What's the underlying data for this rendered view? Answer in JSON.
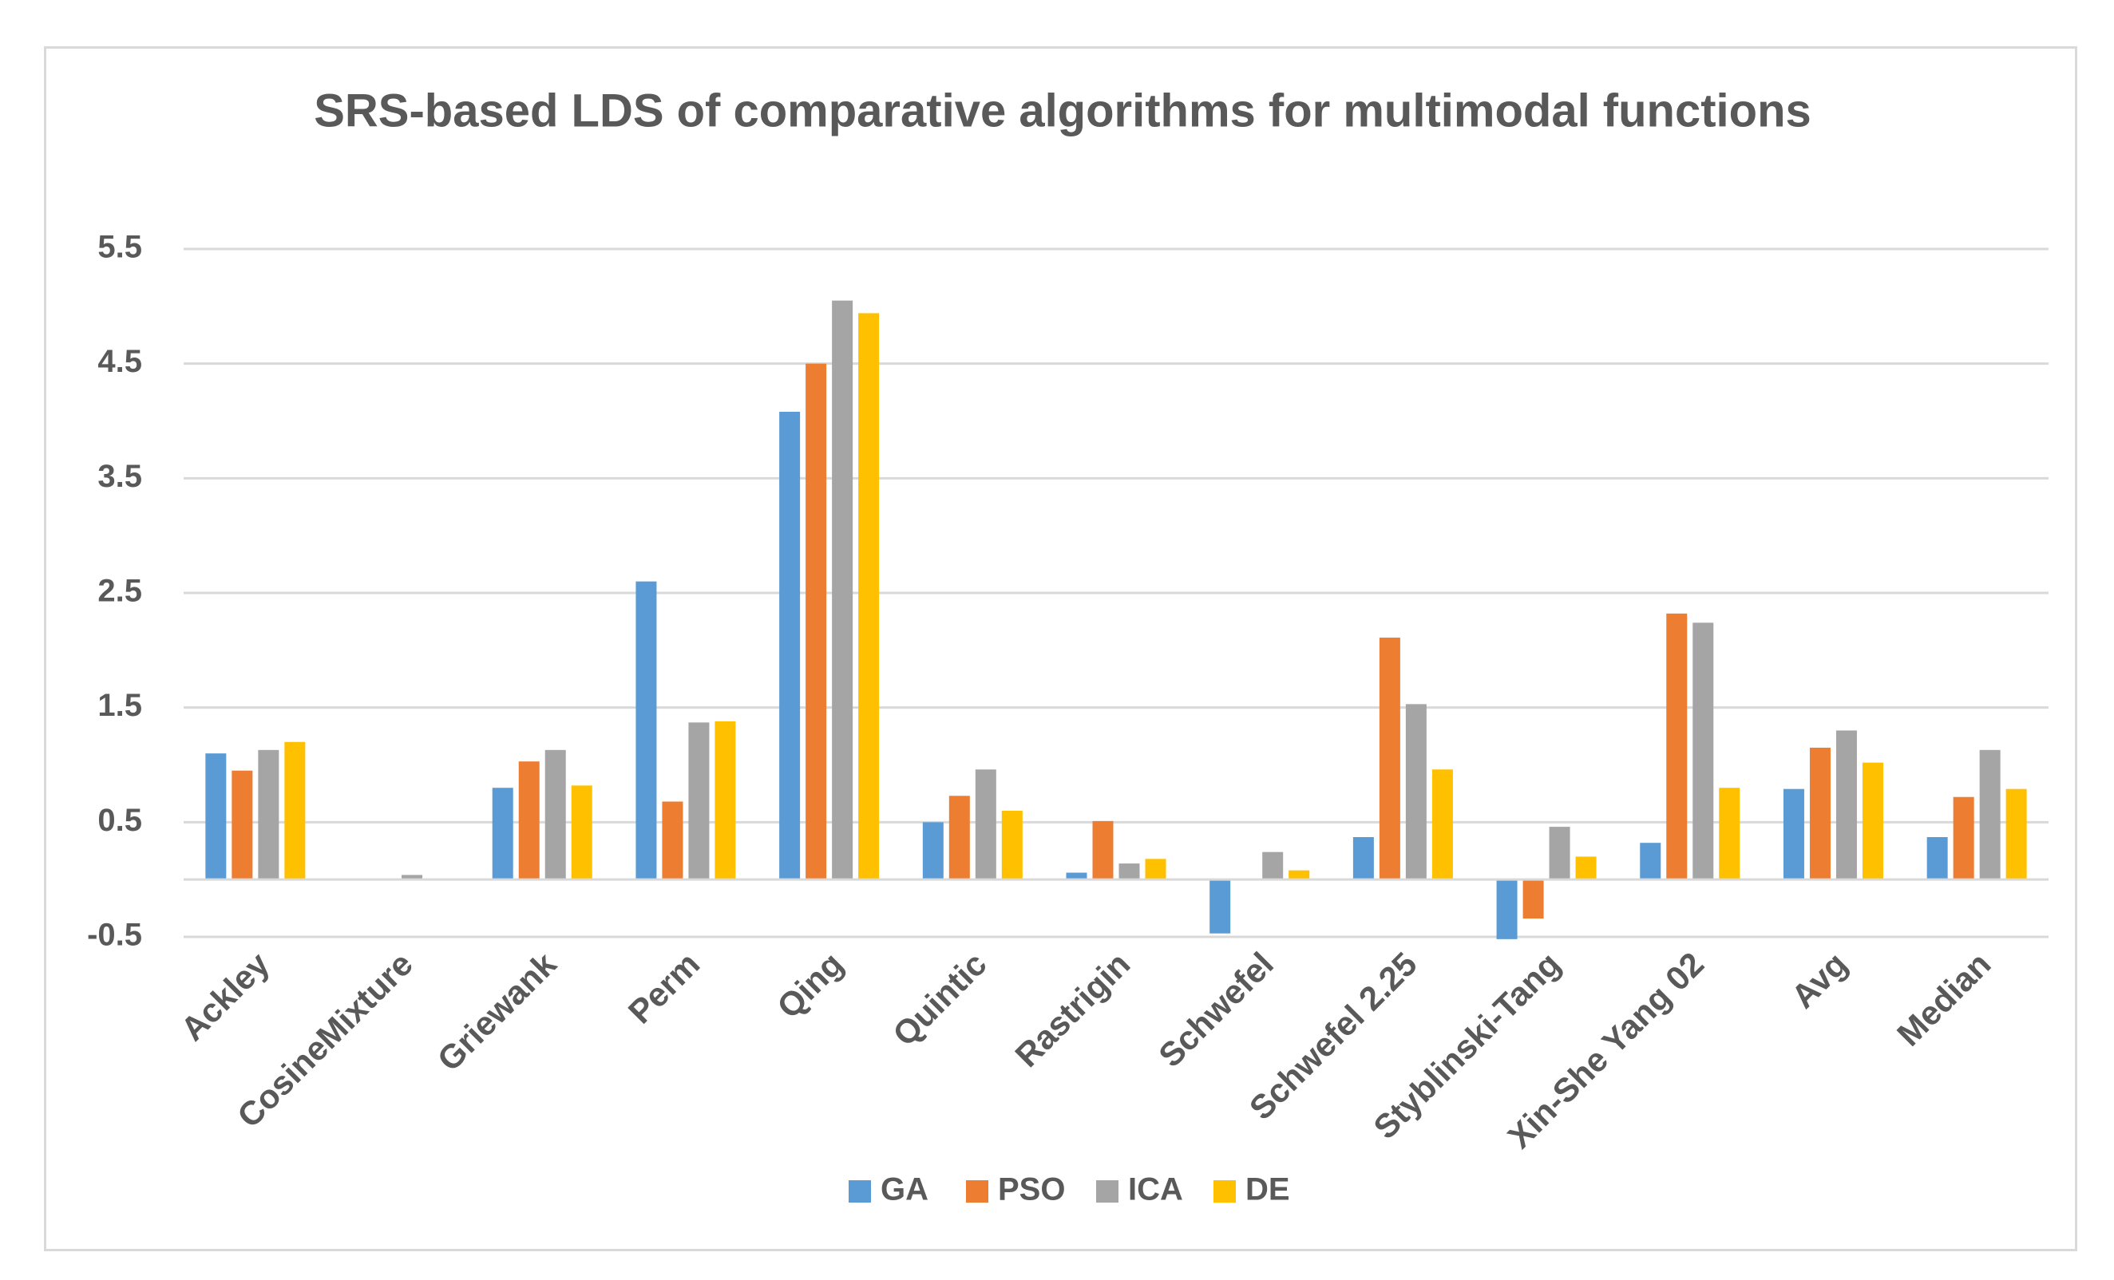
{
  "chart_data": {
    "type": "bar",
    "title": "SRS-based LDS of comparative algorithms for multimodal functions",
    "xlabel": "",
    "ylabel": "",
    "ylim": [
      -0.5,
      5.5
    ],
    "yticks": [
      5.5,
      4.5,
      3.5,
      2.5,
      1.5,
      0.5,
      -0.5
    ],
    "ytick_labels": [
      "5.5",
      "4.5",
      "3.5",
      "2.5",
      "1.5",
      "0.5",
      "-0.5"
    ],
    "categories": [
      "Ackley",
      "CosineMixture",
      "Griewank",
      "Perm",
      "Qing",
      "Quintic",
      "Rastrigin",
      "Schwefel",
      "Schwefel 2.25",
      "Styblinski-Tang",
      "Xin-She Yang 02",
      "Avg",
      "Median"
    ],
    "series": [
      {
        "name": "GA",
        "color": "#5b9bd5",
        "values": [
          1.1,
          0.0,
          0.8,
          2.6,
          4.08,
          0.5,
          0.06,
          -0.47,
          0.37,
          -0.52,
          0.32,
          0.79,
          0.37
        ]
      },
      {
        "name": "PSO",
        "color": "#ed7d31",
        "values": [
          0.95,
          0.0,
          1.03,
          0.68,
          4.5,
          0.73,
          0.51,
          0.0,
          2.11,
          -0.34,
          2.32,
          1.15,
          0.72
        ]
      },
      {
        "name": "ICA",
        "color": "#a5a5a5",
        "values": [
          1.13,
          0.04,
          1.13,
          1.37,
          5.05,
          0.96,
          0.14,
          0.24,
          1.53,
          0.46,
          2.24,
          1.3,
          1.13
        ]
      },
      {
        "name": "DE",
        "color": "#ffc000",
        "values": [
          1.2,
          0.0,
          0.82,
          1.38,
          4.94,
          0.6,
          0.18,
          0.08,
          0.96,
          0.2,
          0.8,
          1.02,
          0.79
        ]
      }
    ],
    "grid": true,
    "legend": "bottom"
  }
}
